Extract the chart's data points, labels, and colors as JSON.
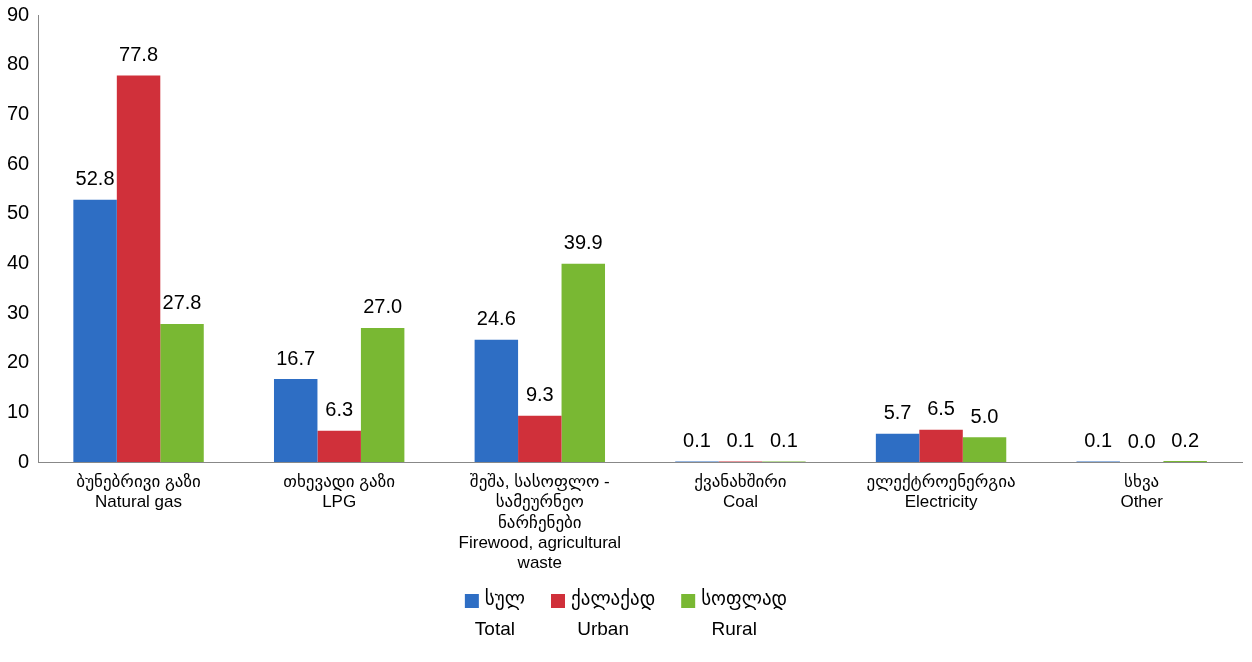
{
  "chart_data": {
    "type": "bar",
    "categories": [
      "ბუნებრივი გაზი\nNatural gas",
      "თხევადი გაზი\nLPG",
      "შეშა, სასოფლო -\nსამეურნეო\nნარჩენები\nFirewood, agricultural\nwaste",
      "ქვანახშირი\nCoal",
      "ელექტროენერგია\nElectricity",
      "სხვა\nOther"
    ],
    "series": [
      {
        "name": "სულ\nTotal",
        "color": "#2e6ec4",
        "values": [
          52.8,
          16.7,
          24.6,
          0.1,
          5.7,
          0.1
        ],
        "value_labels": [
          "52.8",
          "16.7",
          "24.6",
          "0.1",
          "5.7",
          "0.1"
        ]
      },
      {
        "name": "ქალაქად\nUrban",
        "color": "#d0303a",
        "values": [
          77.8,
          6.3,
          9.3,
          0.1,
          6.5,
          0.0
        ],
        "value_labels": [
          "77.8",
          "6.3",
          "9.3",
          "0.1",
          "6.5",
          "0.0"
        ]
      },
      {
        "name": "სოფლად\nRural",
        "color": "#79b833",
        "values": [
          27.8,
          27.0,
          39.9,
          0.1,
          5.0,
          0.2
        ],
        "value_labels": [
          "27.8",
          "27.0",
          "39.9",
          "0.1",
          "5.0",
          "0.2"
        ]
      }
    ],
    "ylim": [
      0,
      90
    ],
    "yticks": [
      0,
      10,
      20,
      30,
      40,
      50,
      60,
      70,
      80,
      90
    ],
    "grid": false,
    "legend": "bottom"
  }
}
